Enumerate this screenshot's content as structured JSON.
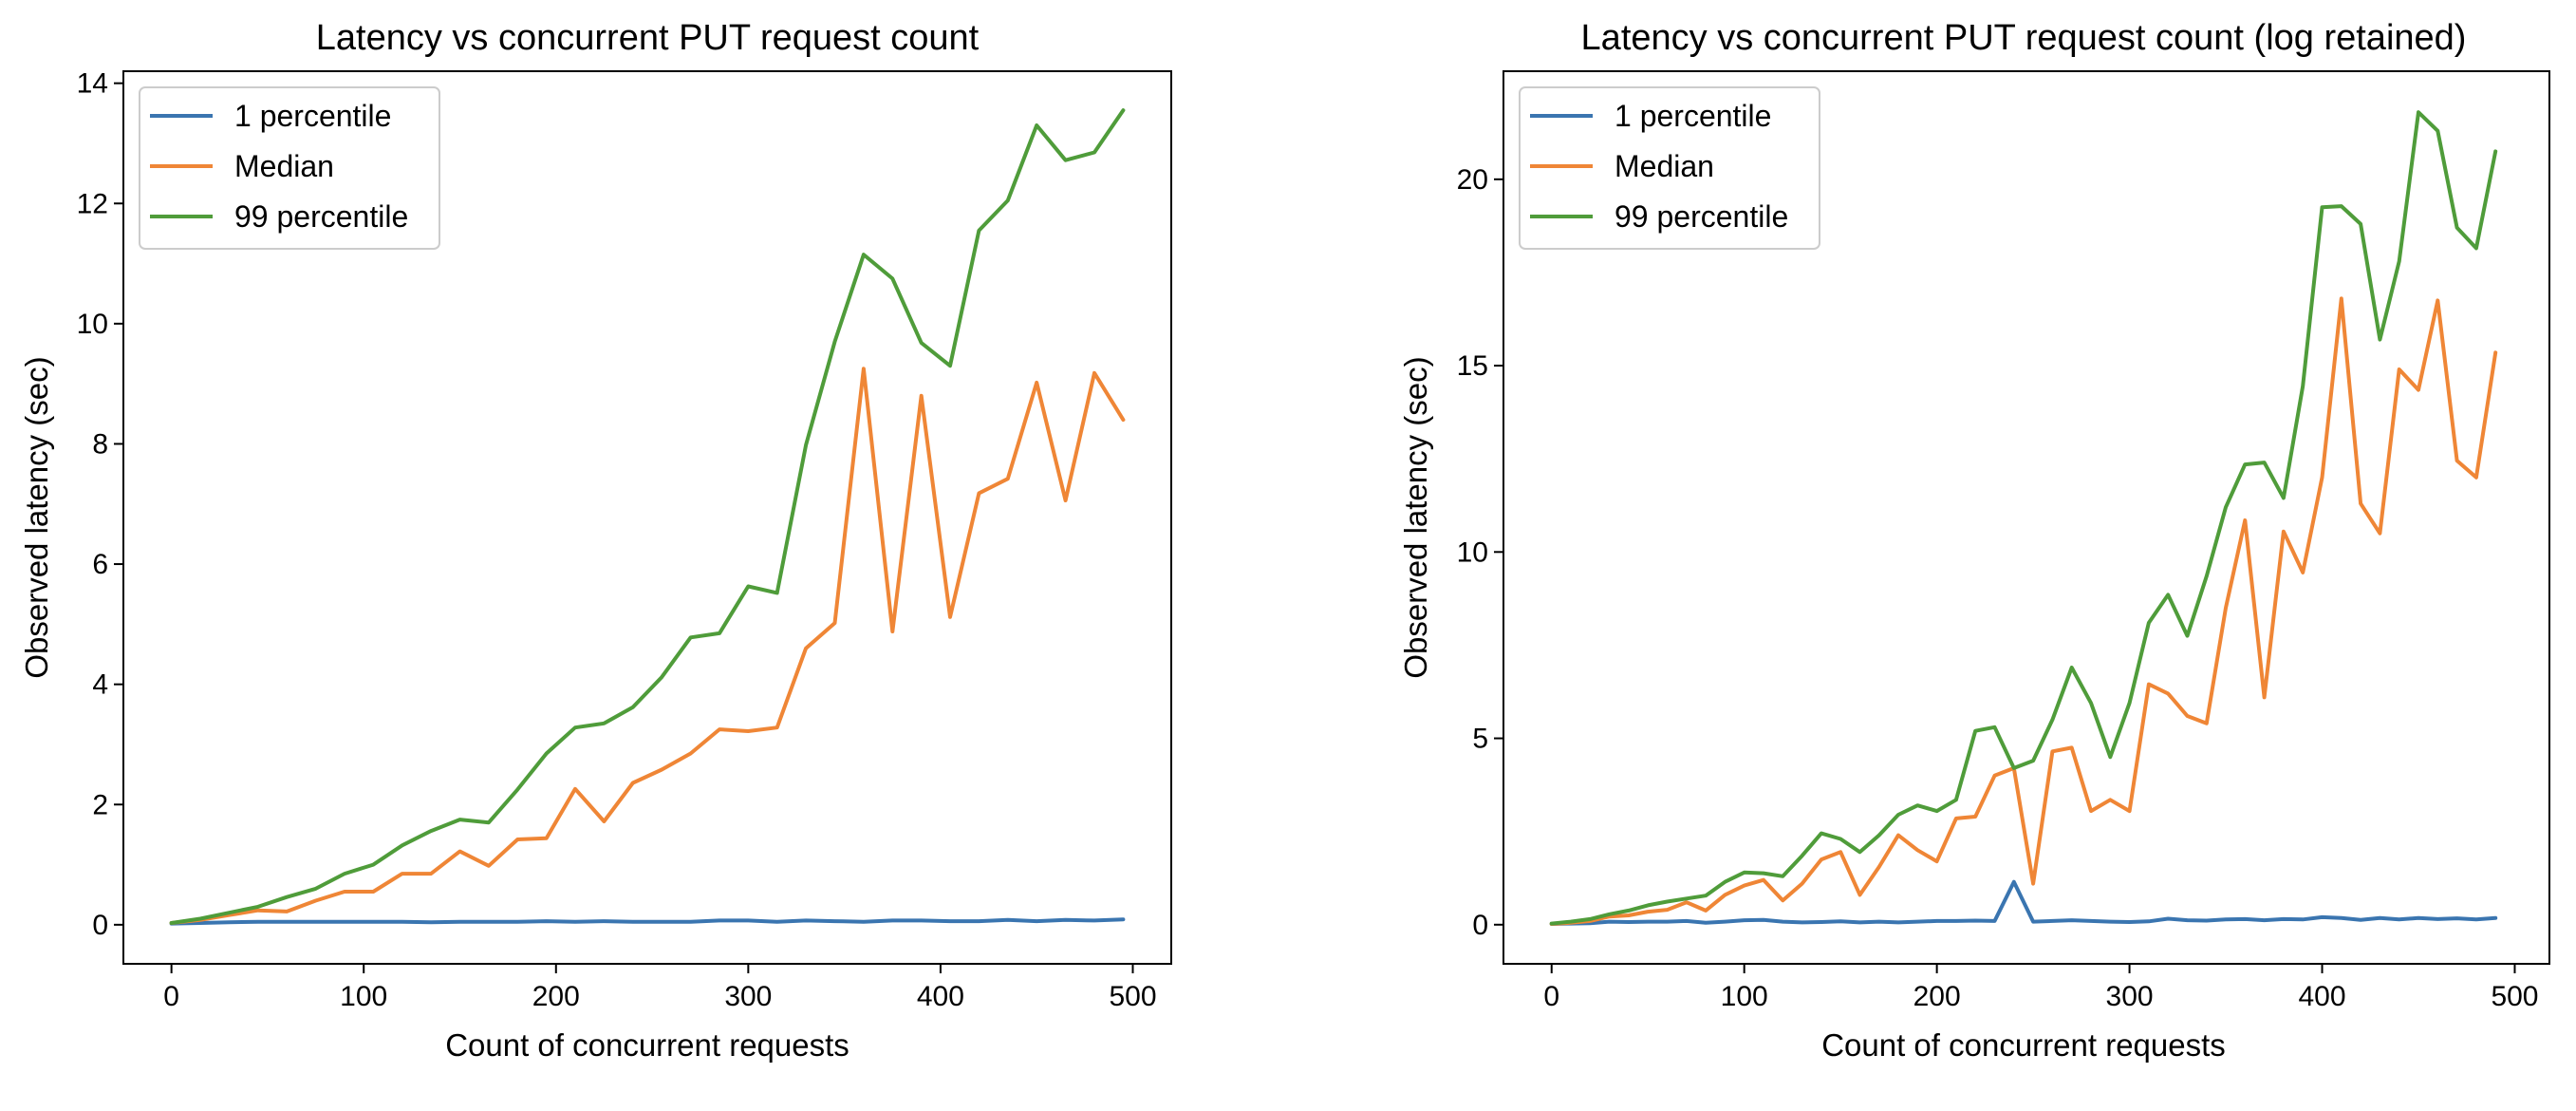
{
  "chart_data": [
    {
      "type": "line",
      "title": "Latency vs concurrent PUT request count",
      "xlabel": "Count of concurrent requests",
      "ylabel": "Observed latency (sec)",
      "xlim": [
        -25,
        520
      ],
      "ylim": [
        -0.65,
        14.2
      ],
      "xticks": [
        0,
        100,
        200,
        300,
        400,
        500
      ],
      "xtick_labels": [
        "0",
        "100",
        "200",
        "300",
        "400",
        "500"
      ],
      "yticks": [
        0,
        2,
        4,
        6,
        8,
        10,
        12,
        14
      ],
      "ytick_labels": [
        "0",
        "2",
        "4",
        "6",
        "8",
        "10",
        "12",
        "14"
      ],
      "grid": false,
      "legend": "upper left",
      "x": [
        0,
        15,
        30,
        45,
        60,
        75,
        90,
        105,
        120,
        135,
        150,
        165,
        180,
        195,
        210,
        225,
        240,
        255,
        270,
        285,
        300,
        315,
        330,
        345,
        360,
        375,
        390,
        405,
        420,
        435,
        450,
        465,
        480,
        495
      ],
      "series": [
        {
          "name": "1 percentile",
          "color": "#3a75b0",
          "values": [
            0.02,
            0.03,
            0.04,
            0.05,
            0.05,
            0.05,
            0.05,
            0.05,
            0.05,
            0.04,
            0.05,
            0.05,
            0.05,
            0.06,
            0.05,
            0.06,
            0.05,
            0.05,
            0.05,
            0.07,
            0.07,
            0.05,
            0.07,
            0.06,
            0.05,
            0.07,
            0.07,
            0.06,
            0.06,
            0.08,
            0.06,
            0.08,
            0.07,
            0.09
          ]
        },
        {
          "name": "Median",
          "color": "#ef8636",
          "values": [
            0.03,
            0.08,
            0.16,
            0.24,
            0.22,
            0.4,
            0.55,
            0.55,
            0.85,
            0.85,
            1.22,
            0.98,
            1.42,
            1.44,
            2.26,
            1.72,
            2.36,
            2.58,
            2.85,
            3.25,
            3.22,
            3.28,
            4.6,
            5.02,
            9.25,
            4.88,
            8.8,
            5.12,
            7.18,
            7.42,
            9.02,
            7.06,
            9.18,
            8.4
          ]
        },
        {
          "name": "99 percentile",
          "color": "#4f9c3a",
          "values": [
            0.03,
            0.1,
            0.2,
            0.3,
            0.46,
            0.6,
            0.85,
            1.0,
            1.32,
            1.56,
            1.75,
            1.7,
            2.25,
            2.85,
            3.28,
            3.35,
            3.62,
            4.12,
            4.78,
            4.85,
            5.63,
            5.52,
            7.98,
            9.7,
            11.15,
            10.75,
            9.68,
            9.3,
            11.55,
            12.05,
            13.3,
            12.72,
            12.85,
            13.55
          ]
        }
      ]
    },
    {
      "type": "line",
      "title": "Latency vs concurrent PUT request count (log retained)",
      "xlabel": "Count of concurrent requests",
      "ylabel": "Observed latency (sec)",
      "xlim": [
        -25,
        518
      ],
      "ylim": [
        -1.05,
        22.9
      ],
      "xticks": [
        0,
        100,
        200,
        300,
        400,
        500
      ],
      "xtick_labels": [
        "0",
        "100",
        "200",
        "300",
        "400",
        "500"
      ],
      "yticks": [
        0,
        5,
        10,
        15,
        20
      ],
      "ytick_labels": [
        "0",
        "5",
        "10",
        "15",
        "20"
      ],
      "grid": false,
      "legend": "upper left",
      "x": [
        0,
        10,
        20,
        30,
        40,
        50,
        60,
        70,
        80,
        90,
        100,
        110,
        120,
        130,
        140,
        150,
        160,
        170,
        180,
        190,
        200,
        210,
        220,
        230,
        240,
        250,
        260,
        270,
        280,
        290,
        300,
        310,
        320,
        330,
        340,
        350,
        360,
        370,
        380,
        390,
        400,
        410,
        420,
        430,
        440,
        450,
        460,
        470,
        480,
        490
      ],
      "series": [
        {
          "name": "1 percentile",
          "color": "#3a75b0",
          "values": [
            0.02,
            0.03,
            0.04,
            0.08,
            0.07,
            0.08,
            0.08,
            0.1,
            0.05,
            0.08,
            0.12,
            0.13,
            0.08,
            0.06,
            0.07,
            0.09,
            0.06,
            0.08,
            0.06,
            0.08,
            0.1,
            0.1,
            0.11,
            0.1,
            1.15,
            0.08,
            0.1,
            0.12,
            0.1,
            0.08,
            0.07,
            0.09,
            0.16,
            0.12,
            0.11,
            0.14,
            0.15,
            0.12,
            0.15,
            0.14,
            0.2,
            0.18,
            0.13,
            0.18,
            0.14,
            0.18,
            0.15,
            0.17,
            0.14,
            0.18
          ]
        },
        {
          "name": "Median",
          "color": "#ef8636",
          "values": [
            0.02,
            0.05,
            0.1,
            0.22,
            0.25,
            0.35,
            0.4,
            0.6,
            0.38,
            0.8,
            1.05,
            1.2,
            0.65,
            1.1,
            1.75,
            1.95,
            0.8,
            1.55,
            2.4,
            2.0,
            1.7,
            2.85,
            2.9,
            4.0,
            4.2,
            1.1,
            4.65,
            4.75,
            3.05,
            3.35,
            3.05,
            6.45,
            6.2,
            5.6,
            5.4,
            8.5,
            10.85,
            6.1,
            10.55,
            9.45,
            12.0,
            16.8,
            11.3,
            10.5,
            14.9,
            14.35,
            16.75,
            12.45,
            12.0,
            15.35
          ]
        },
        {
          "name": "99 percentile",
          "color": "#4f9c3a",
          "values": [
            0.03,
            0.08,
            0.15,
            0.28,
            0.38,
            0.52,
            0.62,
            0.7,
            0.78,
            1.15,
            1.4,
            1.38,
            1.3,
            1.85,
            2.45,
            2.3,
            1.95,
            2.4,
            2.95,
            3.2,
            3.05,
            3.35,
            5.2,
            5.3,
            4.2,
            4.4,
            5.5,
            6.9,
            5.95,
            4.5,
            5.95,
            8.1,
            8.85,
            7.75,
            9.35,
            11.2,
            12.35,
            12.4,
            11.45,
            14.45,
            19.25,
            19.28,
            18.8,
            15.7,
            17.8,
            21.8,
            21.3,
            18.7,
            18.15,
            20.75
          ]
        }
      ]
    }
  ]
}
